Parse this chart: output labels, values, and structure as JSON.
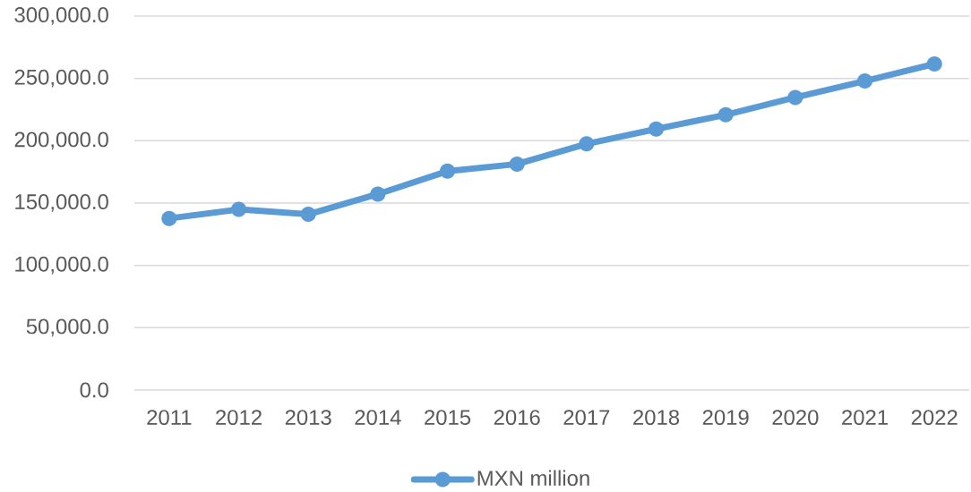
{
  "chart_data": {
    "type": "line",
    "categories": [
      "2011",
      "2012",
      "2013",
      "2014",
      "2015",
      "2016",
      "2017",
      "2018",
      "2019",
      "2020",
      "2021",
      "2022"
    ],
    "series": [
      {
        "name": "MXN million",
        "color": "#5b9bd5",
        "values": [
          137700,
          144900,
          141000,
          157200,
          175600,
          181300,
          197500,
          209400,
          220800,
          234700,
          247900,
          261600
        ]
      }
    ],
    "ylim": [
      0,
      300000
    ],
    "yticks": [
      {
        "value": 0,
        "label": "0.0"
      },
      {
        "value": 50000,
        "label": "50,000.0"
      },
      {
        "value": 100000,
        "label": "100,000.0"
      },
      {
        "value": 150000,
        "label": "150,000.0"
      },
      {
        "value": 200000,
        "label": "200,000.0"
      },
      {
        "value": 250000,
        "label": "250,000.0"
      },
      {
        "value": 300000,
        "label": "300,000.0"
      }
    ],
    "grid": "y",
    "legend": "bottom",
    "marker": "circle",
    "line_style": "solid"
  }
}
